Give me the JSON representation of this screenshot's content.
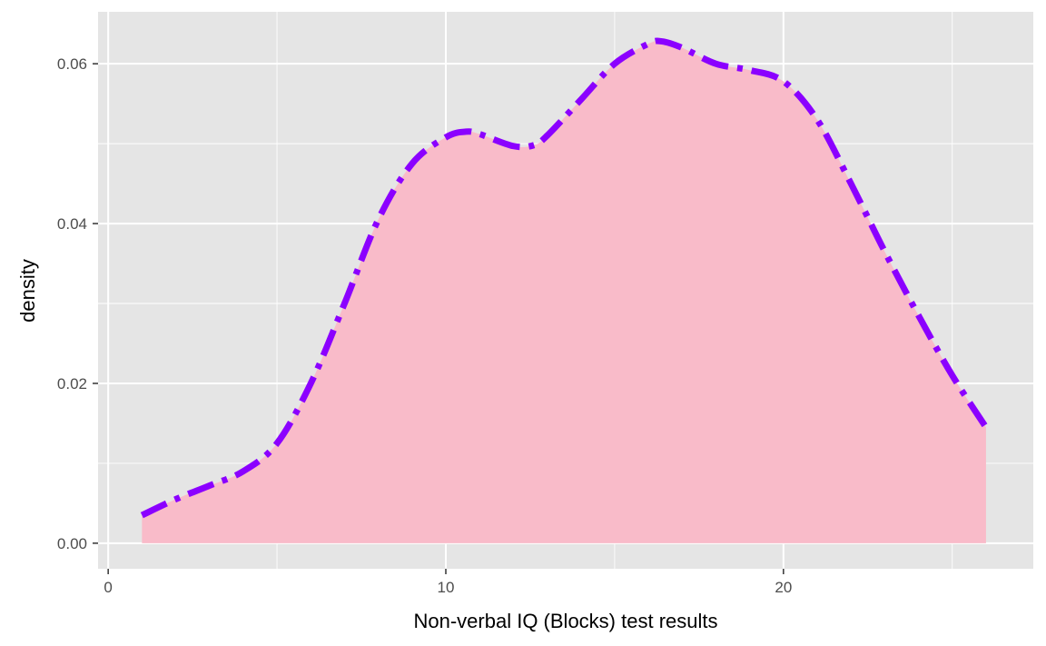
{
  "chart_data": {
    "type": "area",
    "title": "",
    "xlabel": "Non-verbal IQ (Blocks) test results",
    "ylabel": "density",
    "xlim": [
      -0.3,
      27.4
    ],
    "ylim": [
      -0.0032,
      0.0665
    ],
    "x_ticks": [
      0,
      10,
      20
    ],
    "x_tick_labels": [
      "0",
      "10",
      "20"
    ],
    "x_minor_ticks": [
      5,
      15,
      25
    ],
    "y_ticks": [
      0.0,
      0.02,
      0.04,
      0.06
    ],
    "y_tick_labels": [
      "0.00",
      "0.02",
      "0.04",
      "0.06"
    ],
    "y_minor_ticks": [
      0.01,
      0.03,
      0.05
    ],
    "grid": true,
    "fill_color": "#f9bbc9",
    "line_color": "#8b00ff",
    "line_style": "dashdot",
    "panel_background": "#e5e5e5",
    "series": [
      {
        "x": [
          1,
          2,
          3,
          4,
          5,
          6,
          7,
          8,
          9,
          10,
          10.6,
          11,
          12,
          12.6,
          13,
          14,
          15,
          16,
          16.4,
          17,
          18,
          19,
          20,
          21,
          22,
          23,
          24,
          25,
          26
        ],
        "y": [
          0.0035,
          0.0055,
          0.0072,
          0.009,
          0.0125,
          0.02,
          0.03,
          0.0405,
          0.0475,
          0.0508,
          0.0515,
          0.0512,
          0.0497,
          0.0498,
          0.051,
          0.0555,
          0.06,
          0.0625,
          0.0628,
          0.062,
          0.06,
          0.0592,
          0.0578,
          0.053,
          0.045,
          0.0365,
          0.0285,
          0.021,
          0.0145
        ]
      }
    ]
  }
}
